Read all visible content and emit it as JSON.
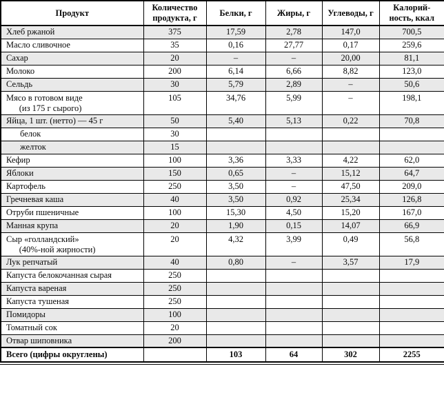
{
  "table": {
    "columns": [
      "Продукт",
      "Количество\nпродукта, г",
      "Белки, г",
      "Жиры, г",
      "Углеводы, г",
      "Калорий-\nность, ккал"
    ],
    "rows": [
      {
        "name": "Хлеб ржаной",
        "qty": "375",
        "protein": "17,59",
        "fat": "2,78",
        "carbs": "147,0",
        "cal": "700,5"
      },
      {
        "name": "Масло сливочное",
        "qty": "35",
        "protein": "0,16",
        "fat": "27,77",
        "carbs": "0,17",
        "cal": "259,6"
      },
      {
        "name": "Сахар",
        "qty": "20",
        "protein": "–",
        "fat": "–",
        "carbs": "20,00",
        "cal": "81,1"
      },
      {
        "name": "Молоко",
        "qty": "200",
        "protein": "6,14",
        "fat": "6,66",
        "carbs": "8,82",
        "cal": "123,0"
      },
      {
        "name": "Сельдь",
        "qty": "30",
        "protein": "5,79",
        "fat": "2,89",
        "carbs": "–",
        "cal": "50,6"
      },
      {
        "name": "Мясо в готовом виде\n      (из 175 г сырого)",
        "qty": "105",
        "protein": "34,76",
        "fat": "5,99",
        "carbs": "–",
        "cal": "198,1",
        "twoline": true
      },
      {
        "name": "Яйца, 1 шт. (нетто) — 45 г",
        "qty": "50",
        "protein": "5,40",
        "fat": "5,13",
        "carbs": "0,22",
        "cal": "70,8"
      },
      {
        "name": "белок",
        "indent": true,
        "qty": "30",
        "protein": "",
        "fat": "",
        "carbs": "",
        "cal": ""
      },
      {
        "name": "желток",
        "indent": true,
        "qty": "15",
        "protein": "",
        "fat": "",
        "carbs": "",
        "cal": ""
      },
      {
        "name": "Кефир",
        "qty": "100",
        "protein": "3,36",
        "fat": "3,33",
        "carbs": "4,22",
        "cal": "62,0"
      },
      {
        "name": "Яблоки",
        "qty": "150",
        "protein": "0,65",
        "fat": "–",
        "carbs": "15,12",
        "cal": "64,7"
      },
      {
        "name": "Картофель",
        "qty": "250",
        "protein": "3,50",
        "fat": "–",
        "carbs": "47,50",
        "cal": "209,0"
      },
      {
        "name": "Гречневая каша",
        "qty": "40",
        "protein": "3,50",
        "fat": "0,92",
        "carbs": "25,34",
        "cal": "126,8"
      },
      {
        "name": "Отруби пшеничные",
        "qty": "100",
        "protein": "15,30",
        "fat": "4,50",
        "carbs": "15,20",
        "cal": "167,0"
      },
      {
        "name": "Манная крупа",
        "qty": "20",
        "protein": "1,90",
        "fat": "0,15",
        "carbs": "14,07",
        "cal": "66,9"
      },
      {
        "name": "Сыр «голландский»\n      (40%-ной жирности)",
        "qty": "20",
        "protein": "4,32",
        "fat": "3,99",
        "carbs": "0,49",
        "cal": "56,8",
        "twoline": true
      },
      {
        "name": "Лук репчатый",
        "qty": "40",
        "protein": "0,80",
        "fat": "–",
        "carbs": "3,57",
        "cal": "17,9"
      },
      {
        "name": "Капуста белокочанная сырая",
        "qty": "250",
        "protein": "",
        "fat": "",
        "carbs": "",
        "cal": ""
      },
      {
        "name": "Капуста вареная",
        "qty": "250",
        "protein": "",
        "fat": "",
        "carbs": "",
        "cal": ""
      },
      {
        "name": "Капуста тушеная",
        "qty": "250",
        "protein": "",
        "fat": "",
        "carbs": "",
        "cal": ""
      },
      {
        "name": "Помидоры",
        "qty": "100",
        "protein": "",
        "fat": "",
        "carbs": "",
        "cal": ""
      },
      {
        "name": "Томатный сок",
        "qty": "20",
        "protein": "",
        "fat": "",
        "carbs": "",
        "cal": ""
      },
      {
        "name": "Отвар шиповника",
        "qty": "200",
        "protein": "",
        "fat": "",
        "carbs": "",
        "cal": ""
      },
      {
        "name": "Всего (цифры округлены)",
        "qty": "",
        "protein": "103",
        "fat": "64",
        "carbs": "302",
        "cal": "2255",
        "total": true
      }
    ],
    "colors": {
      "shaded_row": "#e9e9e9",
      "border": "#000000",
      "background": "#ffffff",
      "text": "#0a0a0a"
    }
  }
}
